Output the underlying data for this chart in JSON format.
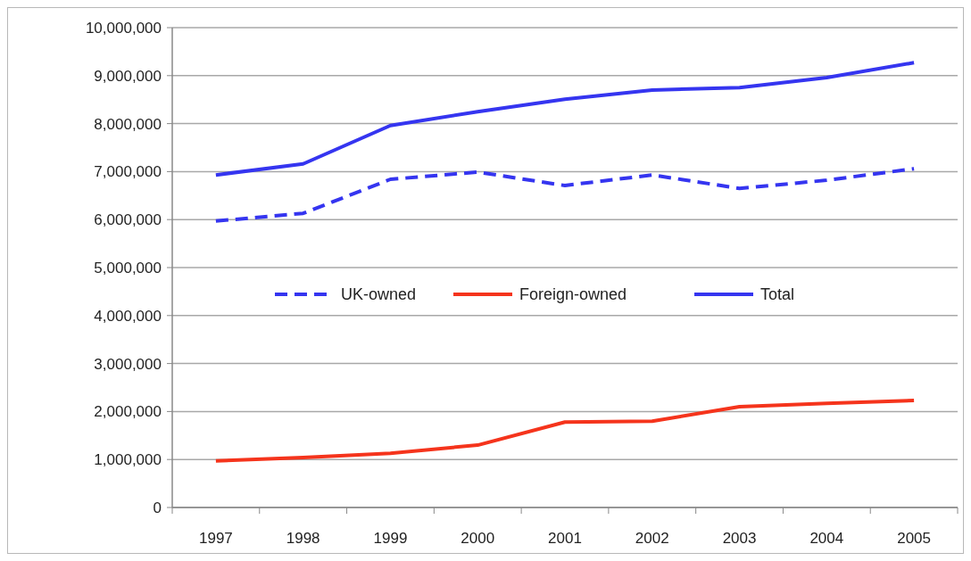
{
  "chart_data": {
    "type": "line",
    "categories": [
      "1997",
      "1998",
      "1999",
      "2000",
      "2001",
      "2002",
      "2003",
      "2004",
      "2005"
    ],
    "series": [
      {
        "name": "UK-owned",
        "color": "#3535f0",
        "line_style": "dashed",
        "values": [
          5970000,
          6130000,
          6840000,
          6990000,
          6710000,
          6930000,
          6650000,
          6820000,
          7060000
        ]
      },
      {
        "name": "Foreign-owned",
        "color": "#f5341c",
        "line_style": "solid",
        "values": [
          970000,
          1040000,
          1130000,
          1300000,
          1780000,
          1800000,
          2100000,
          2170000,
          2230000
        ]
      },
      {
        "name": "Total",
        "color": "#3535f0",
        "line_style": "solid",
        "values": [
          6930000,
          7160000,
          7960000,
          8250000,
          8510000,
          8700000,
          8750000,
          8960000,
          9270000
        ]
      }
    ],
    "ylim": [
      0,
      10000000
    ],
    "yticks": [
      {
        "value": 0,
        "label": "0"
      },
      {
        "value": 1000000,
        "label": "1,000,000"
      },
      {
        "value": 2000000,
        "label": "2,000,000"
      },
      {
        "value": 3000000,
        "label": "3,000,000"
      },
      {
        "value": 4000000,
        "label": "4,000,000"
      },
      {
        "value": 5000000,
        "label": "5,000,000"
      },
      {
        "value": 6000000,
        "label": "6,000,000"
      },
      {
        "value": 7000000,
        "label": "7,000,000"
      },
      {
        "value": 8000000,
        "label": "8,000,000"
      },
      {
        "value": 9000000,
        "label": "9,000,000"
      },
      {
        "value": 10000000,
        "label": "10,000,000"
      }
    ],
    "grid": "y",
    "legend": "center",
    "marker": "none"
  }
}
